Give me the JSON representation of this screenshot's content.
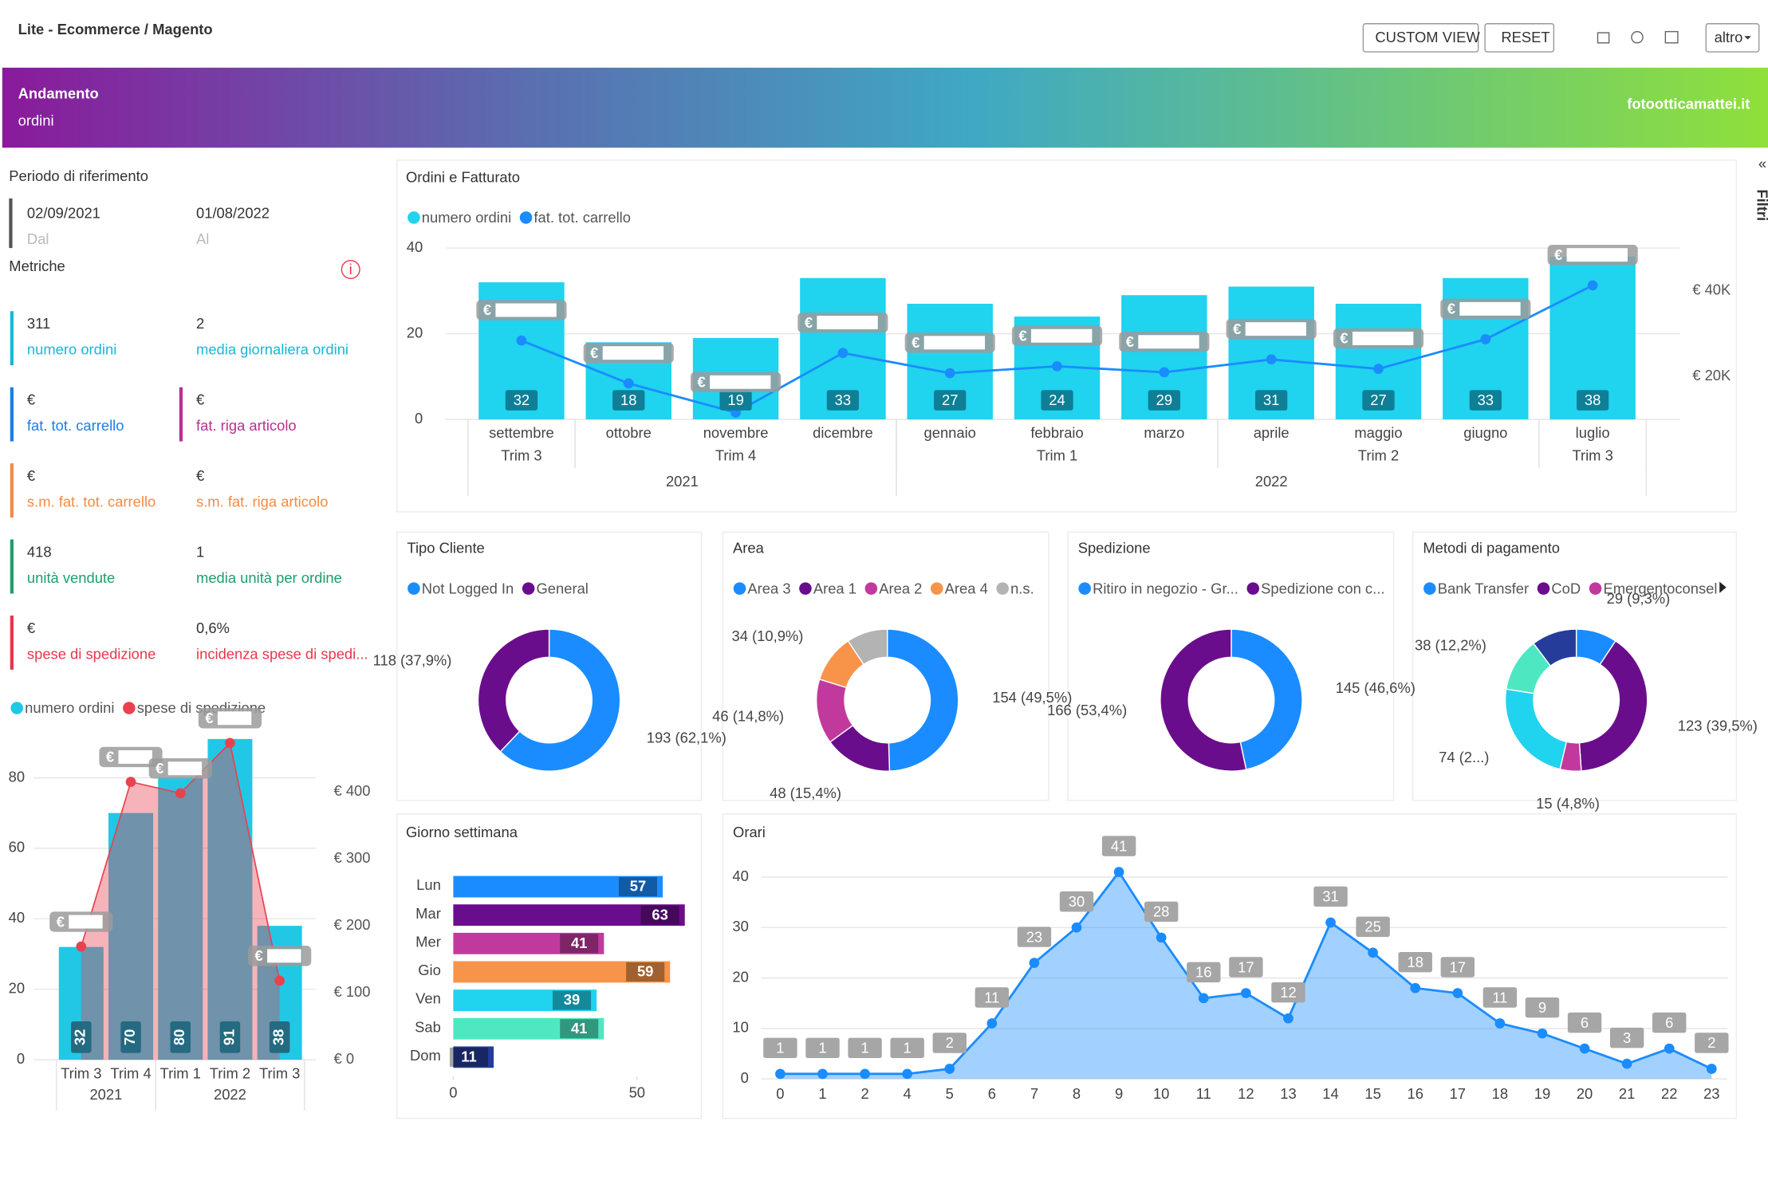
{
  "header": {
    "breadcrumb": "Lite - Ecommerce / Magento",
    "buttons": [
      "CUSTOM VIEW",
      "RESET",
      "altro"
    ]
  },
  "banner": {
    "title": "Andamento",
    "subtitle": "ordini",
    "site": "fotootticamattei.it"
  },
  "side_tab": "Filtri",
  "period": {
    "title": "Periodo di riferimento",
    "from": "02/09/2021",
    "from_label": "Dal",
    "to": "01/08/2022",
    "to_label": "Al"
  },
  "metrics": {
    "title": "Metriche",
    "items": [
      {
        "value": 311,
        "label": "numero ordini",
        "color": "#1ab7d8"
      },
      {
        "value": 2,
        "label": "media giornaliera ordini",
        "color": "#1ab7d8"
      },
      {
        "value": "€",
        "label": "fat. tot. carrello",
        "color": "#1a7ee8"
      },
      {
        "value": "€",
        "label": "fat. riga articolo",
        "color": "#b8308f"
      },
      {
        "value": "€",
        "label": "s.m. fat. tot. carrello",
        "color": "#f58a46"
      },
      {
        "value": "€",
        "label": "s.m. fat. riga articolo",
        "color": "#f58a46"
      },
      {
        "value": 418,
        "label": "unità vendute",
        "color": "#1f9e6a"
      },
      {
        "value": 1,
        "label": "media unità per ordine",
        "color": "#1f9e6a"
      },
      {
        "value": "€",
        "label": "spese di spedizione",
        "color": "#e8364c"
      },
      {
        "value": "0,6%",
        "label": "incidenza spese di spedi...",
        "color": "#e8364c"
      }
    ]
  },
  "chart_data": [
    {
      "type": "combo",
      "title": "Ordini e Fatturato",
      "categories": [
        "settembre",
        "ottobre",
        "novembre",
        "dicembre",
        "gennaio",
        "febbraio",
        "marzo",
        "aprile",
        "maggio",
        "giugno",
        "luglio"
      ],
      "quarters": [
        "Trim 3",
        "Trim 4",
        "Trim 4",
        "Trim 4",
        "Trim 1",
        "Trim 1",
        "Trim 1",
        "Trim 2",
        "Trim 2",
        "Trim 2",
        "Trim 3"
      ],
      "years": [
        "2021",
        "2021",
        "2021",
        "2021",
        "2022",
        "2022",
        "2022",
        "2022",
        "2022",
        "2022",
        "2022"
      ],
      "ylim": [
        0,
        40
      ],
      "yticks": [
        0,
        20,
        40
      ],
      "y2lim": [
        10000,
        50000
      ],
      "y2ticks": [
        {
          "value": 20000,
          "label": "€ 20K"
        },
        {
          "value": 40000,
          "label": "€ 40K"
        }
      ],
      "grid": true,
      "series": [
        {
          "name": "numero ordini",
          "type": "bar",
          "color": "#20d3ee",
          "values": [
            32,
            18,
            19,
            33,
            27,
            24,
            29,
            31,
            27,
            33,
            38
          ]
        },
        {
          "name": "fat. tot. carrello",
          "type": "line",
          "axis": "y2",
          "color": "#1a8cff",
          "values": [
            28400,
            18400,
            11600,
            25500,
            20800,
            22400,
            21000,
            24000,
            21800,
            28700,
            41300
          ],
          "value_labels": [
            "€",
            "€",
            "€",
            "€",
            "€",
            "€",
            "€",
            "€",
            "€",
            "€",
            "€"
          ]
        }
      ]
    },
    {
      "type": "combo",
      "categories": [
        "Trim 3",
        "Trim 4",
        "Trim 1",
        "Trim 2",
        "Trim 3"
      ],
      "years": [
        "2021",
        "2021",
        "2022",
        "2022",
        "2022"
      ],
      "ylim": [
        0,
        95
      ],
      "yticks": [
        0,
        20,
        40,
        60,
        80
      ],
      "y2lim": [
        0,
        500
      ],
      "y2ticks": [
        {
          "value": 0,
          "label": "€ 0"
        },
        {
          "value": 100,
          "label": "€ 100"
        },
        {
          "value": 200,
          "label": "€ 200"
        },
        {
          "value": 300,
          "label": "€ 300"
        },
        {
          "value": 400,
          "label": "€ 400"
        }
      ],
      "grid": true,
      "series": [
        {
          "name": "numero ordini",
          "type": "bar",
          "color": "#20c8e6",
          "values": [
            32,
            70,
            80,
            91,
            38
          ]
        },
        {
          "name": "spese di spedizione",
          "type": "line",
          "axis": "y2",
          "area": true,
          "color": "#e8424f",
          "values": [
            169,
            415,
            398,
            473,
            118
          ],
          "value_labels": [
            "€",
            "€",
            "€",
            "€",
            "€"
          ]
        }
      ]
    },
    {
      "type": "donut",
      "title": "Tipo Cliente",
      "categories": [
        "Not Logged In",
        "General"
      ],
      "values": [
        193,
        118
      ],
      "colors": [
        "#1a8cff",
        "#6a0d8c"
      ],
      "value_labels": [
        "193 (62,1%)",
        "118 (37,9%)"
      ]
    },
    {
      "type": "donut",
      "title": "Area",
      "categories": [
        "Area 3",
        "Area 1",
        "Area 2",
        "Area 4",
        "n.s."
      ],
      "values": [
        154,
        48,
        46,
        34,
        29
      ],
      "colors": [
        "#1a8cff",
        "#6a0d8c",
        "#c2399e",
        "#f7944a",
        "#b3b3b3"
      ],
      "value_labels": [
        "154 (49,5%)",
        "48 (15,4%)",
        "46 (14,8%)",
        "34 (10,9%)",
        null
      ]
    },
    {
      "type": "donut",
      "title": "Spedizione",
      "categories": [
        "Ritiro in negozio - Gr...",
        "Spedizione con c..."
      ],
      "values": [
        145,
        166
      ],
      "colors": [
        "#1a8cff",
        "#6a0d8c"
      ],
      "value_labels": [
        "145 (46,6%)",
        "166 (53,4%)"
      ]
    },
    {
      "type": "donut",
      "title": "Metodi di pagamento",
      "categories": [
        "Bank Transfer",
        "CoD",
        "Emergentoconsel",
        null,
        null,
        null
      ],
      "values": [
        29,
        123,
        15,
        74,
        38,
        32
      ],
      "colors": [
        "#1a8cff",
        "#6a0d8c",
        "#c2399e",
        "#20d3ee",
        "#4de8c2",
        "#253c9a"
      ],
      "value_labels": [
        "29 (9,3%)",
        "123 (39,5%)",
        "15 (4,8%)",
        "74 (2...)",
        "38 (12,2%)",
        null
      ]
    },
    {
      "type": "hbar",
      "title": "Giorno settimana",
      "categories": [
        "Lun",
        "Mar",
        "Mer",
        "Gio",
        "Ven",
        "Sab",
        "Dom"
      ],
      "values": [
        57,
        63,
        41,
        59,
        39,
        41,
        11
      ],
      "colors": [
        "#1a8cff",
        "#6a0d8c",
        "#c2399e",
        "#f7944a",
        "#20d3ee",
        "#4de8c2",
        "#253c9a"
      ],
      "xlim": [
        0,
        64
      ],
      "xticks": [
        0,
        50
      ]
    },
    {
      "type": "area",
      "title": "Orari",
      "categories": [
        "0",
        "1",
        "2",
        "4",
        "5",
        "6",
        "7",
        "8",
        "9",
        "10",
        "11",
        "12",
        "13",
        "14",
        "15",
        "16",
        "17",
        "18",
        "19",
        "20",
        "21",
        "22",
        "23"
      ],
      "values": [
        1,
        1,
        1,
        1,
        2,
        11,
        23,
        30,
        41,
        28,
        16,
        17,
        12,
        31,
        25,
        18,
        17,
        11,
        9,
        6,
        3,
        6,
        2
      ],
      "color": "#1a8cff",
      "ylim": [
        0,
        42
      ],
      "yticks": [
        0,
        10,
        20,
        30,
        40
      ],
      "grid": true
    }
  ]
}
